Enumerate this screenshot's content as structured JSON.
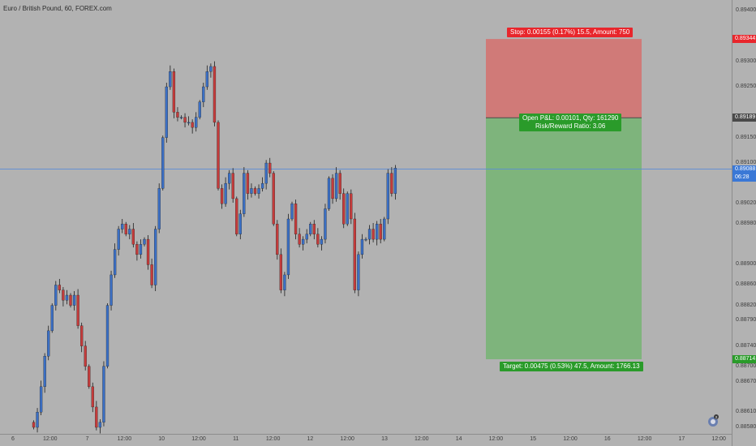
{
  "header": {
    "title": "Euro / British Pound, 60, FOREX.com"
  },
  "price_axis": {
    "ticks": [
      {
        "label": "0.89400",
        "price": 0.894
      },
      {
        "label": "0.89300",
        "price": 0.893
      },
      {
        "label": "0.89250",
        "price": 0.8925
      },
      {
        "label": "0.89150",
        "price": 0.8915
      },
      {
        "label": "0.89100",
        "price": 0.891
      },
      {
        "label": "0.89020",
        "price": 0.8902
      },
      {
        "label": "0.88980",
        "price": 0.8898
      },
      {
        "label": "0.88900",
        "price": 0.889
      },
      {
        "label": "0.88860",
        "price": 0.8886
      },
      {
        "label": "0.88820",
        "price": 0.8882
      },
      {
        "label": "0.88790",
        "price": 0.8879
      },
      {
        "label": "0.88740",
        "price": 0.8874
      },
      {
        "label": "0.88700",
        "price": 0.887
      },
      {
        "label": "0.88670",
        "price": 0.8867
      },
      {
        "label": "0.88610",
        "price": 0.8861
      },
      {
        "label": "0.88580",
        "price": 0.8858
      }
    ],
    "tags": {
      "stop": {
        "label": "0.89344",
        "color": "#e8262c"
      },
      "entry": {
        "label": "0.89189",
        "color": "#4a4a4a"
      },
      "current": {
        "label": "0.89088",
        "color": "#3a78d6"
      },
      "countdown": {
        "label": "06:28",
        "color": "#3a78d6"
      },
      "target": {
        "label": "0.88714",
        "color": "#2a9b2a"
      }
    }
  },
  "time_axis": {
    "ticks": [
      "6",
      "12:00",
      "7",
      "12:00",
      "10",
      "12:00",
      "11",
      "12:00",
      "12",
      "12:00",
      "13",
      "12:00",
      "14",
      "12:00",
      "15",
      "12:00",
      "16",
      "12:00",
      "17",
      "12:00"
    ]
  },
  "position": {
    "stop_text": "Stop: 0.00155 (0.17%) 15.5, Amount: 750",
    "pl_text_1": "Open P&L: 0.00101, Qty: 161290",
    "pl_text_2": "Risk/Reward Ratio: 3.06",
    "target_text": "Target: 0.00475 (0.53%) 47.5, Amount: 1766.13",
    "stop_color": "#d07a78",
    "target_color": "#7eb47c",
    "stop_price": 0.89344,
    "entry_price": 0.89189,
    "target_price": 0.88714
  },
  "current_price": 0.89088,
  "colors": {
    "up": "#3b6fc4",
    "down": "#c43b3b",
    "wick": "#1e1e1e",
    "price_line": "#5a8bd6"
  },
  "badge": {
    "label": "2"
  }
}
